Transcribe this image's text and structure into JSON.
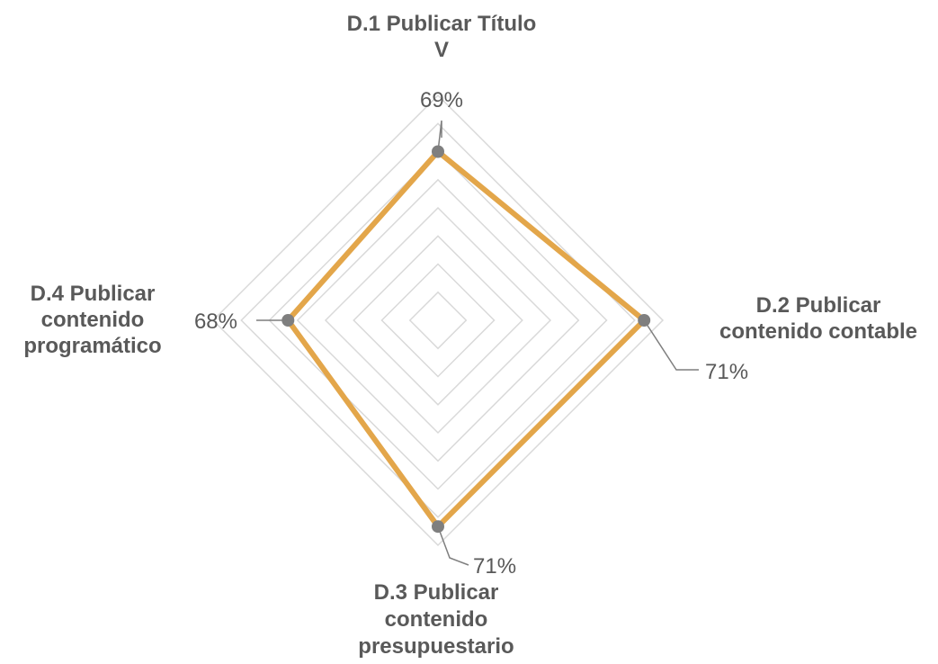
{
  "chart_data": {
    "type": "radar",
    "categories": [
      [
        "D.1 Publicar Título",
        "V"
      ],
      [
        "D.2 Publicar",
        "contenido contable"
      ],
      [
        "D.3 Publicar",
        "contenido",
        "presupuestario"
      ],
      [
        "D.4 Publicar",
        "contenido",
        "programático"
      ]
    ],
    "series": [
      {
        "values": [
          0.69,
          0.71,
          0.71,
          0.68
        ],
        "color": "#E3A64A"
      }
    ],
    "value_labels": [
      "69%",
      "71%",
      "71%",
      "68%"
    ],
    "r_range": [
      0.6,
      0.72
    ],
    "rings": 8,
    "grid": true,
    "legend": "none",
    "colors": {
      "grid": "#D9D9D9",
      "marker": "#7F7F7F",
      "leader": "#7F7F7F",
      "text": "#595959"
    }
  }
}
